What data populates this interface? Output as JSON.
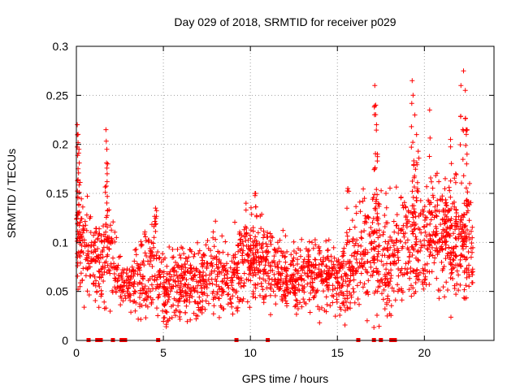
{
  "chart_data": {
    "type": "scatter",
    "title": "Day 029 of 2018, SRMTID for receiver p029",
    "xlabel": "GPS time / hours",
    "ylabel": "SRMTID / TECUs",
    "xlim": [
      0,
      24
    ],
    "ylim": [
      0,
      0.3
    ],
    "x_ticks": [
      0,
      5,
      10,
      15,
      20
    ],
    "x_tick_labels": [
      "0",
      "5",
      "10",
      "15",
      "20"
    ],
    "y_ticks": [
      0,
      0.05,
      0.1,
      0.15,
      0.2,
      0.25,
      0.3
    ],
    "y_tick_labels": [
      "0",
      "0.05",
      "0.1",
      "0.15",
      "0.2",
      "0.25",
      "0.3"
    ],
    "grid": true,
    "marker": "+",
    "series_color": "#ff0000",
    "baseline_markers_x": [
      0.7,
      1.2,
      1.4,
      2.1,
      2.6,
      2.8,
      4.7,
      9.2,
      11.0,
      16.2,
      17.1,
      17.5,
      18.1,
      18.3
    ],
    "profile": {
      "x": [
        0,
        0.3,
        0.6,
        1.0,
        1.5,
        1.8,
        2.2,
        2.6,
        3.0,
        3.5,
        4.0,
        4.5,
        5.0,
        5.5,
        6.0,
        6.5,
        7.0,
        7.5,
        8.0,
        8.5,
        9.0,
        9.5,
        10.0,
        10.5,
        11.0,
        11.5,
        12.0,
        12.5,
        13.0,
        13.5,
        14.0,
        14.5,
        15.0,
        15.5,
        16.0,
        16.5,
        17.0,
        17.5,
        18.0,
        18.5,
        19.0,
        19.5,
        20.0,
        20.5,
        21.0,
        21.5,
        22.0,
        22.5,
        22.8
      ],
      "median": [
        0.11,
        0.1,
        0.095,
        0.085,
        0.08,
        0.1,
        0.075,
        0.06,
        0.055,
        0.06,
        0.07,
        0.075,
        0.05,
        0.055,
        0.055,
        0.055,
        0.06,
        0.065,
        0.065,
        0.065,
        0.065,
        0.075,
        0.085,
        0.08,
        0.075,
        0.07,
        0.065,
        0.06,
        0.065,
        0.065,
        0.07,
        0.065,
        0.06,
        0.065,
        0.08,
        0.09,
        0.1,
        0.095,
        0.085,
        0.09,
        0.1,
        0.1,
        0.11,
        0.115,
        0.11,
        0.1,
        0.1,
        0.095,
        0.095
      ],
      "spread": [
        0.03,
        0.03,
        0.025,
        0.025,
        0.025,
        0.04,
        0.02,
        0.015,
        0.015,
        0.02,
        0.025,
        0.025,
        0.02,
        0.02,
        0.02,
        0.02,
        0.02,
        0.02,
        0.025,
        0.025,
        0.025,
        0.025,
        0.025,
        0.025,
        0.025,
        0.02,
        0.02,
        0.02,
        0.02,
        0.02,
        0.02,
        0.02,
        0.02,
        0.025,
        0.03,
        0.035,
        0.04,
        0.04,
        0.035,
        0.035,
        0.035,
        0.04,
        0.035,
        0.035,
        0.035,
        0.035,
        0.035,
        0.035,
        0.03
      ]
    },
    "peaks": [
      {
        "x": 0.05,
        "y": 0.22
      },
      {
        "x": 0.1,
        "y": 0.175
      },
      {
        "x": 0.15,
        "y": 0.195
      },
      {
        "x": 1.7,
        "y": 0.215
      },
      {
        "x": 1.75,
        "y": 0.195
      },
      {
        "x": 1.8,
        "y": 0.18
      },
      {
        "x": 4.55,
        "y": 0.135
      },
      {
        "x": 9.75,
        "y": 0.14
      },
      {
        "x": 10.3,
        "y": 0.15
      },
      {
        "x": 15.6,
        "y": 0.155
      },
      {
        "x": 17.15,
        "y": 0.26
      },
      {
        "x": 17.2,
        "y": 0.24
      },
      {
        "x": 17.25,
        "y": 0.22
      },
      {
        "x": 17.3,
        "y": 0.19
      },
      {
        "x": 19.3,
        "y": 0.265
      },
      {
        "x": 19.35,
        "y": 0.25
      },
      {
        "x": 19.45,
        "y": 0.23
      },
      {
        "x": 19.55,
        "y": 0.21
      },
      {
        "x": 20.3,
        "y": 0.235
      },
      {
        "x": 21.5,
        "y": 0.205
      },
      {
        "x": 22.1,
        "y": 0.26
      },
      {
        "x": 22.25,
        "y": 0.275
      },
      {
        "x": 22.35,
        "y": 0.255
      },
      {
        "x": 22.4,
        "y": 0.215
      },
      {
        "x": 22.45,
        "y": 0.19
      },
      {
        "x": 21.8,
        "y": 0.17
      },
      {
        "x": 21.2,
        "y": 0.165
      }
    ],
    "point_count": 2200
  }
}
